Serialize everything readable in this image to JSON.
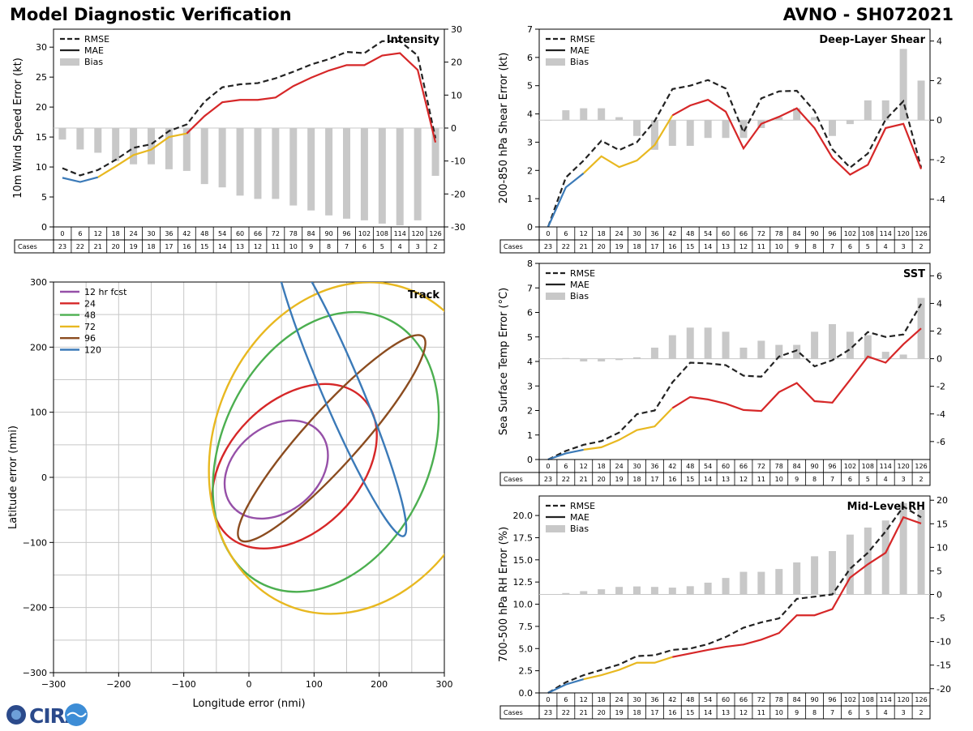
{
  "header": {
    "title": "Model Diagnostic Verification",
    "storm": "AVNO - SH072021"
  },
  "logo": {
    "text": "CIRA"
  },
  "styles": {
    "rmse_color": "#222222",
    "mae_color": "#222222",
    "bias_color": "#c8c8c8",
    "grid_color": "#c8c8c8",
    "mae_segment_colors": [
      "#3b7ab8",
      "#e8b820",
      "#d62728"
    ]
  },
  "legend_labels": {
    "rmse": "RMSE",
    "mae": "MAE",
    "bias": "Bias"
  },
  "hours": [
    0,
    6,
    12,
    18,
    24,
    30,
    36,
    42,
    48,
    54,
    60,
    66,
    72,
    78,
    84,
    90,
    96,
    102,
    108,
    114,
    120,
    126
  ],
  "cases": [
    23,
    22,
    21,
    20,
    19,
    18,
    17,
    16,
    15,
    14,
    13,
    12,
    11,
    10,
    9,
    8,
    7,
    6,
    5,
    4,
    3,
    2
  ],
  "cases_label": "Cases",
  "chart_data": [
    {
      "type": "line",
      "id": "intensity",
      "title": "Intensity",
      "ylabel": "10m Wind Speed Error (kt)",
      "ylim": [
        0,
        33
      ],
      "yticks": [
        0,
        5,
        10,
        15,
        20,
        25,
        30
      ],
      "y2lim": [
        -30,
        30
      ],
      "y2ticks": [
        -30,
        -20,
        -10,
        0,
        10,
        20,
        30
      ],
      "rmse": [
        9.8,
        8.6,
        9.5,
        11.2,
        13.2,
        13.8,
        16.0,
        17.1,
        20.9,
        23.3,
        23.8,
        24.0,
        24.8,
        25.9,
        27.1,
        28.0,
        29.2,
        29.0,
        31.0,
        31.0,
        28.6,
        14.8
      ],
      "mae": [
        8.2,
        7.5,
        8.3,
        10.1,
        12.0,
        12.9,
        15.0,
        15.6,
        18.5,
        20.8,
        21.2,
        21.2,
        21.6,
        23.5,
        24.9,
        26.1,
        27.0,
        27.0,
        28.6,
        29.0,
        26.2,
        14.1
      ],
      "bias": [
        -3.5,
        -6.5,
        -7.5,
        -10.0,
        -11.0,
        -11.0,
        -12.5,
        -13.0,
        -17.0,
        -18.0,
        -20.5,
        -21.5,
        -21.5,
        -23.5,
        -25.0,
        -26.5,
        -27.5,
        -28.0,
        -29.0,
        -29.5,
        -28.0,
        -14.5
      ]
    },
    {
      "type": "line",
      "id": "shear",
      "title": "Deep-Layer Shear",
      "ylabel": "200-850 hPa Shear Error (kt)",
      "ylim": [
        0,
        7
      ],
      "yticks": [
        0,
        1,
        2,
        3,
        4,
        5,
        6,
        7
      ],
      "y2lim": [
        -5.4,
        4.6
      ],
      "y2ticks": [
        -4,
        -2,
        0,
        2,
        4
      ],
      "rmse": [
        0.0,
        1.75,
        2.35,
        3.05,
        2.72,
        3.0,
        3.75,
        4.88,
        5.0,
        5.2,
        4.9,
        3.35,
        4.55,
        4.8,
        4.82,
        4.1,
        2.75,
        2.1,
        2.6,
        3.8,
        4.45,
        2.1
      ],
      "mae": [
        0.0,
        1.4,
        1.9,
        2.5,
        2.12,
        2.35,
        2.9,
        3.95,
        4.3,
        4.5,
        4.08,
        2.78,
        3.65,
        3.9,
        4.2,
        3.5,
        2.45,
        1.85,
        2.2,
        3.5,
        3.65,
        2.05
      ],
      "bias": [
        0.0,
        0.5,
        0.6,
        0.6,
        0.15,
        -0.8,
        -1.5,
        -1.3,
        -1.3,
        -0.9,
        -0.9,
        -0.9,
        -0.4,
        0.15,
        0.6,
        0.15,
        -0.8,
        -0.2,
        1.0,
        1.0,
        3.6,
        2.0
      ]
    },
    {
      "type": "line",
      "id": "sst",
      "title": "SST",
      "ylabel": "Sea Surface Temp Error (°C)",
      "ylim": [
        0,
        8
      ],
      "yticks": [
        0,
        1,
        2,
        3,
        4,
        5,
        6,
        7,
        8
      ],
      "y2lim": [
        -7.3,
        6.9
      ],
      "y2ticks": [
        -6,
        -4,
        -2,
        0,
        2,
        4,
        6
      ],
      "rmse": [
        0.0,
        0.35,
        0.6,
        0.75,
        1.1,
        1.85,
        2.0,
        3.15,
        3.95,
        3.92,
        3.85,
        3.42,
        3.38,
        4.2,
        4.45,
        3.8,
        4.05,
        4.5,
        5.2,
        5.0,
        5.1,
        6.35
      ],
      "mae": [
        0.0,
        0.25,
        0.4,
        0.5,
        0.8,
        1.2,
        1.35,
        2.1,
        2.55,
        2.45,
        2.28,
        2.02,
        1.98,
        2.75,
        3.12,
        2.38,
        2.32,
        3.25,
        4.2,
        3.95,
        4.7,
        5.35
      ],
      "bias": [
        0.0,
        0.05,
        -0.2,
        -0.2,
        -0.1,
        0.1,
        0.8,
        1.7,
        2.25,
        2.25,
        1.95,
        0.8,
        1.3,
        1.0,
        1.0,
        1.95,
        2.5,
        1.95,
        1.7,
        0.5,
        0.3,
        4.4
      ]
    },
    {
      "type": "line",
      "id": "rh",
      "title": "Mid-Level RH",
      "ylabel": "700-500 hPa RH Error (%)",
      "ylim": [
        0,
        22.2
      ],
      "yticks": [
        0.0,
        2.5,
        5.0,
        7.5,
        10.0,
        12.5,
        15.0,
        17.5,
        20.0
      ],
      "y2lim": [
        -20.9,
        20.9
      ],
      "y2ticks": [
        -20,
        -15,
        -10,
        -5,
        0,
        5,
        10,
        15,
        20
      ],
      "rmse": [
        0.0,
        1.2,
        2.0,
        2.6,
        3.2,
        4.15,
        4.25,
        4.85,
        5.0,
        5.5,
        6.3,
        7.35,
        7.95,
        8.4,
        10.6,
        10.85,
        11.1,
        14.0,
        15.8,
        18.2,
        21.0,
        19.8
      ],
      "mae": [
        0.0,
        0.95,
        1.55,
        2.0,
        2.6,
        3.4,
        3.4,
        4.05,
        4.45,
        4.85,
        5.2,
        5.45,
        6.0,
        6.75,
        8.75,
        8.75,
        9.45,
        13.0,
        14.5,
        15.8,
        19.8,
        19.1
      ],
      "bias": [
        0.0,
        0.3,
        0.7,
        1.1,
        1.6,
        1.7,
        1.6,
        1.45,
        1.75,
        2.5,
        3.5,
        4.8,
        4.8,
        5.4,
        6.8,
        8.1,
        9.2,
        12.7,
        14.2,
        15.7,
        19.4,
        18.0
      ]
    },
    {
      "type": "ellipse",
      "id": "track",
      "title": "Track",
      "xlabel": "Longitude error (nmi)",
      "ylabel": "Latitude error (nmi)",
      "xlim": [
        -300,
        300
      ],
      "ylim": [
        -300,
        300
      ],
      "xticks": [
        -300,
        -200,
        -100,
        0,
        100,
        200,
        300
      ],
      "yticks": [
        -300,
        -200,
        -100,
        0,
        100,
        200,
        300
      ],
      "series": [
        {
          "name": "12 hr fcst",
          "color": "#9650a8",
          "cx": 42,
          "cy": 12,
          "a": 88,
          "b": 65,
          "angle_deg": -40
        },
        {
          "name": "24",
          "color": "#d62728",
          "cx": 70,
          "cy": 17,
          "a": 148,
          "b": 100,
          "angle_deg": -45
        },
        {
          "name": "48",
          "color": "#4caf50",
          "cx": 118,
          "cy": 39,
          "a": 225,
          "b": 160,
          "angle_deg": -65
        },
        {
          "name": "72",
          "color": "#e8b820",
          "cx": 155,
          "cy": 45,
          "a": 260,
          "b": 210,
          "angle_deg": -70
        },
        {
          "name": "96",
          "color": "#8b4c1f",
          "cx": 127,
          "cy": 60,
          "a": 210,
          "b": 42,
          "angle_deg": -48
        },
        {
          "name": "120",
          "color": "#3b7ab8",
          "cx": 140,
          "cy": 140,
          "a": 250,
          "b": 30,
          "angle_deg": 67
        }
      ]
    }
  ]
}
